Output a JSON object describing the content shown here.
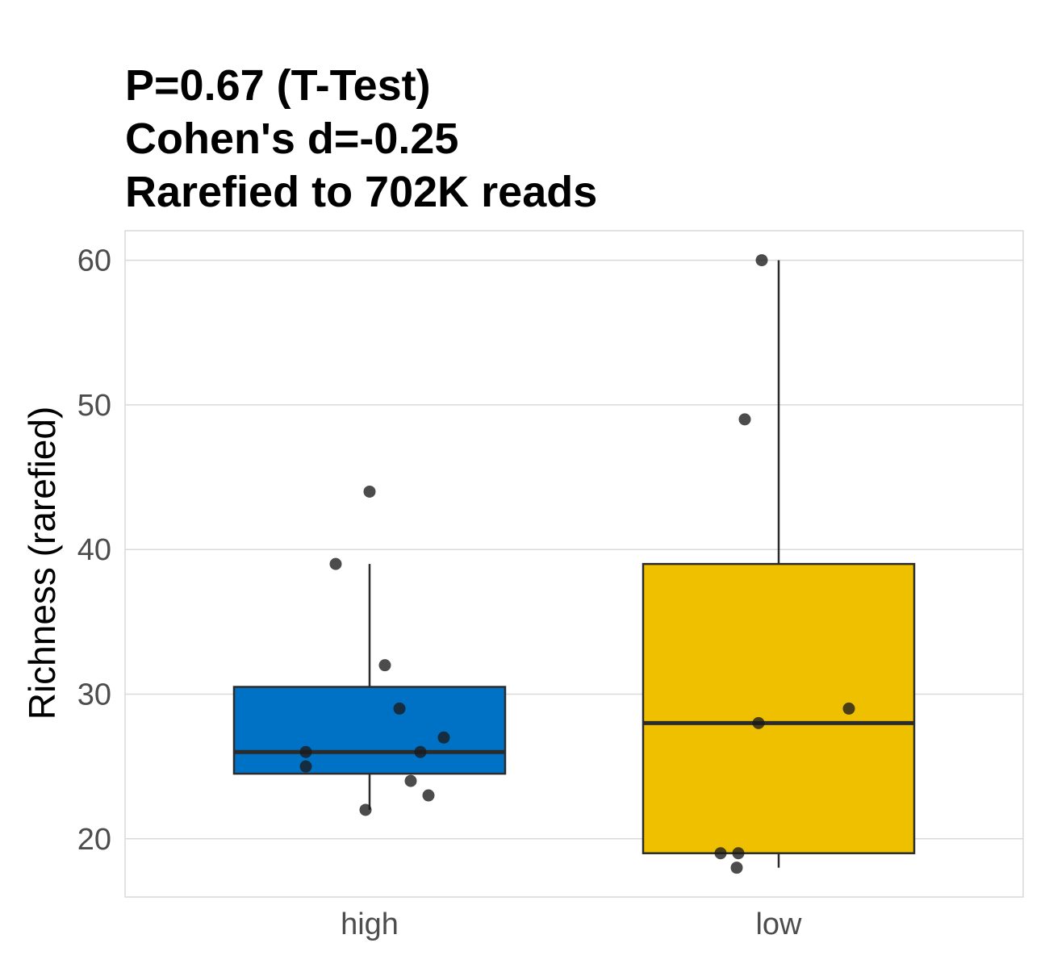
{
  "chart_data": {
    "type": "box",
    "title_lines": [
      "P=0.67 (T-Test)",
      "Cohen's d=-0.25",
      "Rarefied to 702K reads"
    ],
    "xlabel": "",
    "ylabel": "Richness (rarefied)",
    "categories": [
      "high",
      "low"
    ],
    "ylim": [
      16,
      62
    ],
    "yticks": [
      20,
      30,
      40,
      50,
      60
    ],
    "grid": true,
    "legend": "none",
    "colors": {
      "high": "#0072C6",
      "low": "#EFC000",
      "box_outline": "#2b2b2b",
      "point": "#1a1a1a",
      "grid": "#d9d9d9",
      "panel_border": "#d9d9d9"
    },
    "boxes": [
      {
        "group": "high",
        "whisker_low": 22,
        "q1": 24.5,
        "median": 26,
        "q3": 30.5,
        "whisker_high": 39
      },
      {
        "group": "low",
        "whisker_low": 18,
        "q1": 19,
        "median": 28,
        "q3": 39,
        "whisker_high": 60
      }
    ],
    "points": [
      {
        "group": "high",
        "y": 44
      },
      {
        "group": "high",
        "y": 39
      },
      {
        "group": "high",
        "y": 32
      },
      {
        "group": "high",
        "y": 29
      },
      {
        "group": "high",
        "y": 27
      },
      {
        "group": "high",
        "y": 26
      },
      {
        "group": "high",
        "y": 26
      },
      {
        "group": "high",
        "y": 25
      },
      {
        "group": "high",
        "y": 24
      },
      {
        "group": "high",
        "y": 23
      },
      {
        "group": "high",
        "y": 22
      },
      {
        "group": "low",
        "y": 60
      },
      {
        "group": "low",
        "y": 49
      },
      {
        "group": "low",
        "y": 29
      },
      {
        "group": "low",
        "y": 28
      },
      {
        "group": "low",
        "y": 19
      },
      {
        "group": "low",
        "y": 19
      },
      {
        "group": "low",
        "y": 18
      }
    ]
  }
}
